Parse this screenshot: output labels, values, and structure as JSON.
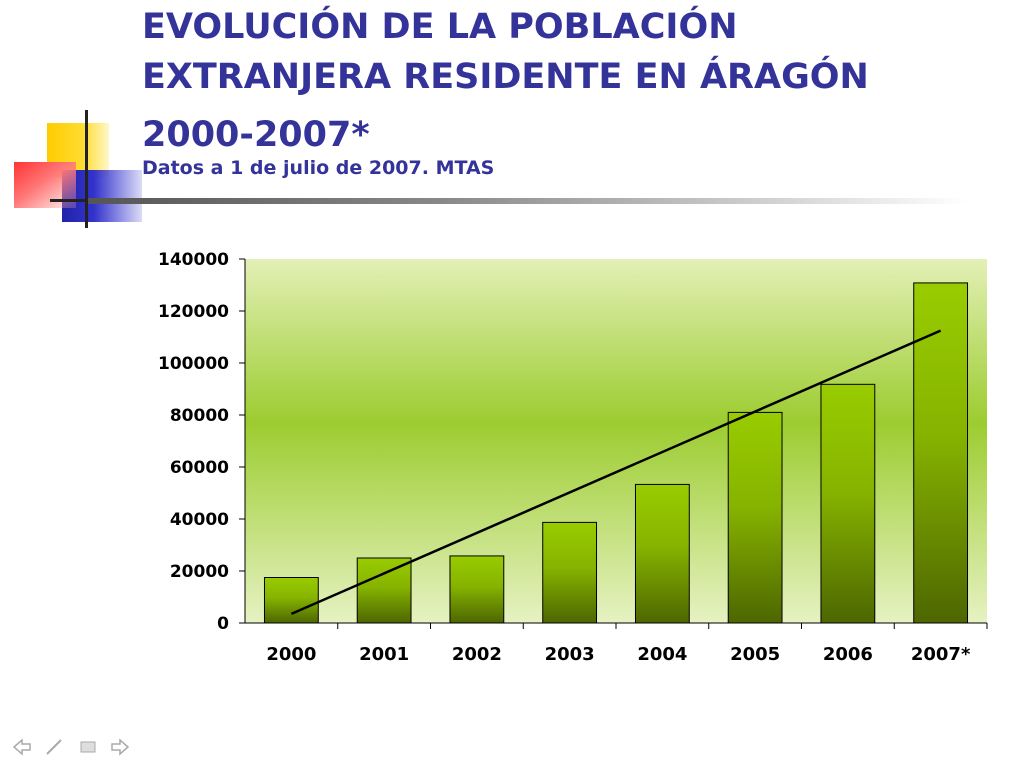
{
  "slide": {
    "title_lines": [
      "EVOLUCIÓN DE LA POBLACIÓN",
      "EXTRANJERA RESIDENTE EN ÁRAGÓN",
      "2000-2007*"
    ],
    "subtitle": "Datos a 1 de julio de 2007. MTAS"
  },
  "nav": {
    "prev_icon": "arrow-left-icon",
    "pen_icon": "pen-icon",
    "menu_icon": "menu-icon",
    "next_icon": "arrow-right-icon"
  },
  "colors": {
    "title": "#333399",
    "bar_top": "#99cc00",
    "bar_bottom": "#4d6600",
    "plot_bg_light": "#e6f2c0",
    "plot_bg_mid": "#99cc33"
  },
  "chart_data": {
    "type": "bar",
    "categories": [
      "2000",
      "2001",
      "2002",
      "2003",
      "2004",
      "2005",
      "2006",
      "2007*"
    ],
    "values": [
      17500,
      25000,
      25800,
      38700,
      53300,
      81000,
      91800,
      130800
    ],
    "yticks": [
      "0",
      "20000",
      "40000",
      "60000",
      "80000",
      "100000",
      "120000",
      "140000"
    ],
    "ylim": [
      0,
      140000
    ],
    "trendline": true,
    "grid": false,
    "legend": false
  }
}
